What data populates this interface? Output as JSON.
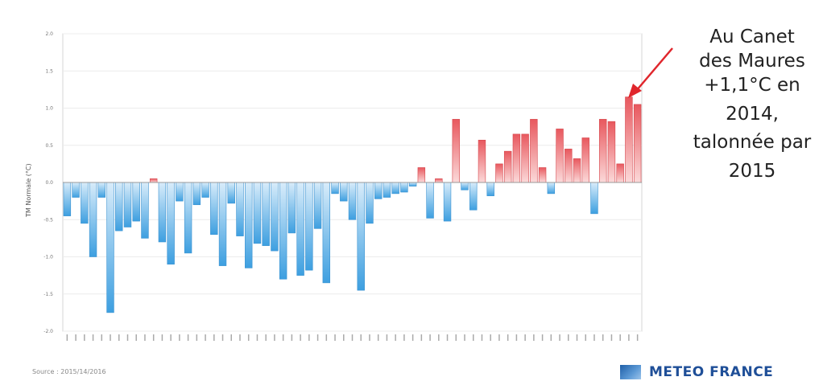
{
  "chart_data": {
    "type": "bar",
    "ylabel": "TM Normale (°C)",
    "ylim": [
      -2.0,
      2.0
    ],
    "y_ticks": [
      "2.0",
      "1.5",
      "1.0",
      "0.5",
      "0.0",
      "-0.5",
      "-1.0",
      "-1.5",
      "-2.0"
    ],
    "y_tick_values": [
      2.0,
      1.5,
      1.0,
      0.5,
      0.0,
      -0.5,
      -1.0,
      -1.5,
      -2.0
    ],
    "grid": true,
    "colors": {
      "positive": "#e8585e",
      "negative": "#3d9fe0"
    },
    "values": [
      -0.45,
      -0.2,
      -0.55,
      -1.0,
      -0.2,
      -1.75,
      -0.65,
      -0.6,
      -0.52,
      -0.75,
      0.05,
      -0.8,
      -1.1,
      -0.25,
      -0.95,
      -0.3,
      -0.2,
      -0.7,
      -1.12,
      -0.28,
      -0.72,
      -1.15,
      -0.82,
      -0.85,
      -0.92,
      -1.3,
      -0.68,
      -1.25,
      -1.18,
      -0.62,
      -1.35,
      -0.15,
      -0.25,
      -0.5,
      -1.45,
      -0.55,
      -0.22,
      -0.2,
      -0.15,
      -0.13,
      -0.05,
      0.2,
      -0.48,
      0.05,
      -0.52,
      0.85,
      -0.1,
      -0.37,
      0.57,
      -0.18,
      0.25,
      0.42,
      0.65,
      0.65,
      0.85,
      0.2,
      -0.15,
      0.72,
      0.45,
      0.32,
      0.6,
      -0.42,
      0.85,
      0.82,
      0.25,
      1.15,
      1.05
    ]
  },
  "annotation": {
    "lines": [
      "Au Canet",
      "des Maures",
      "+1,1°C en",
      "2014,",
      "talonnée par",
      "2015"
    ]
  },
  "footer": {
    "note": "Source : 2015/14/2016"
  },
  "logo": {
    "text": "METEO FRANCE"
  }
}
